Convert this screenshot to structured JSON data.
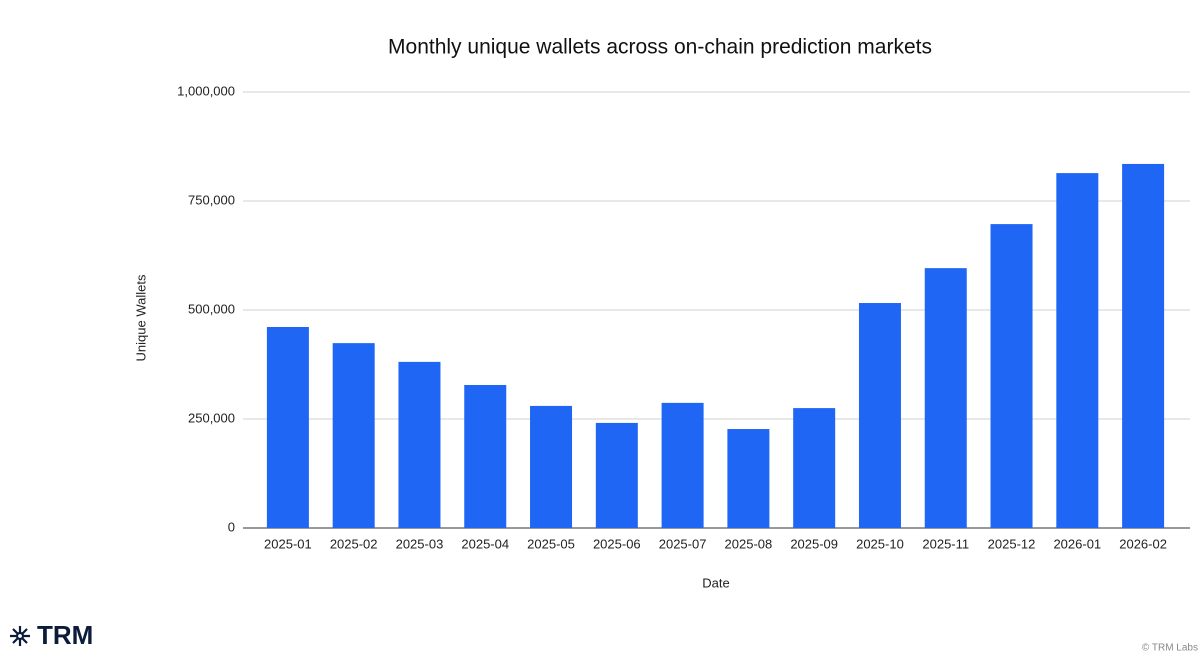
{
  "chart_data": {
    "type": "bar",
    "title": "Monthly unique wallets across on-chain prediction markets",
    "x_label": "Date",
    "y_label": "Unique Wallets",
    "categories": [
      "2025-01",
      "2025-02",
      "2025-03",
      "2025-04",
      "2025-05",
      "2025-06",
      "2025-07",
      "2025-08",
      "2025-09",
      "2025-10",
      "2025-11",
      "2025-12",
      "2026-01",
      "2026-02"
    ],
    "values": [
      461000,
      424000,
      381000,
      328000,
      280000,
      241000,
      287000,
      227000,
      275000,
      516000,
      596000,
      697000,
      814000,
      835000
    ],
    "color": "#1f66f5",
    "ylim": [
      0,
      1000000
    ],
    "yticks": [
      0,
      {
        "value": 250000,
        "label": "250,000"
      },
      {
        "value": 500000,
        "label": "500,000"
      },
      {
        "value": 750000,
        "label": "750,000"
      },
      {
        "value": 1000000,
        "label": "1,000,000"
      }
    ],
    "grid": true
  },
  "footer": {
    "logo": "TRM",
    "credit": "© TRM Labs"
  }
}
